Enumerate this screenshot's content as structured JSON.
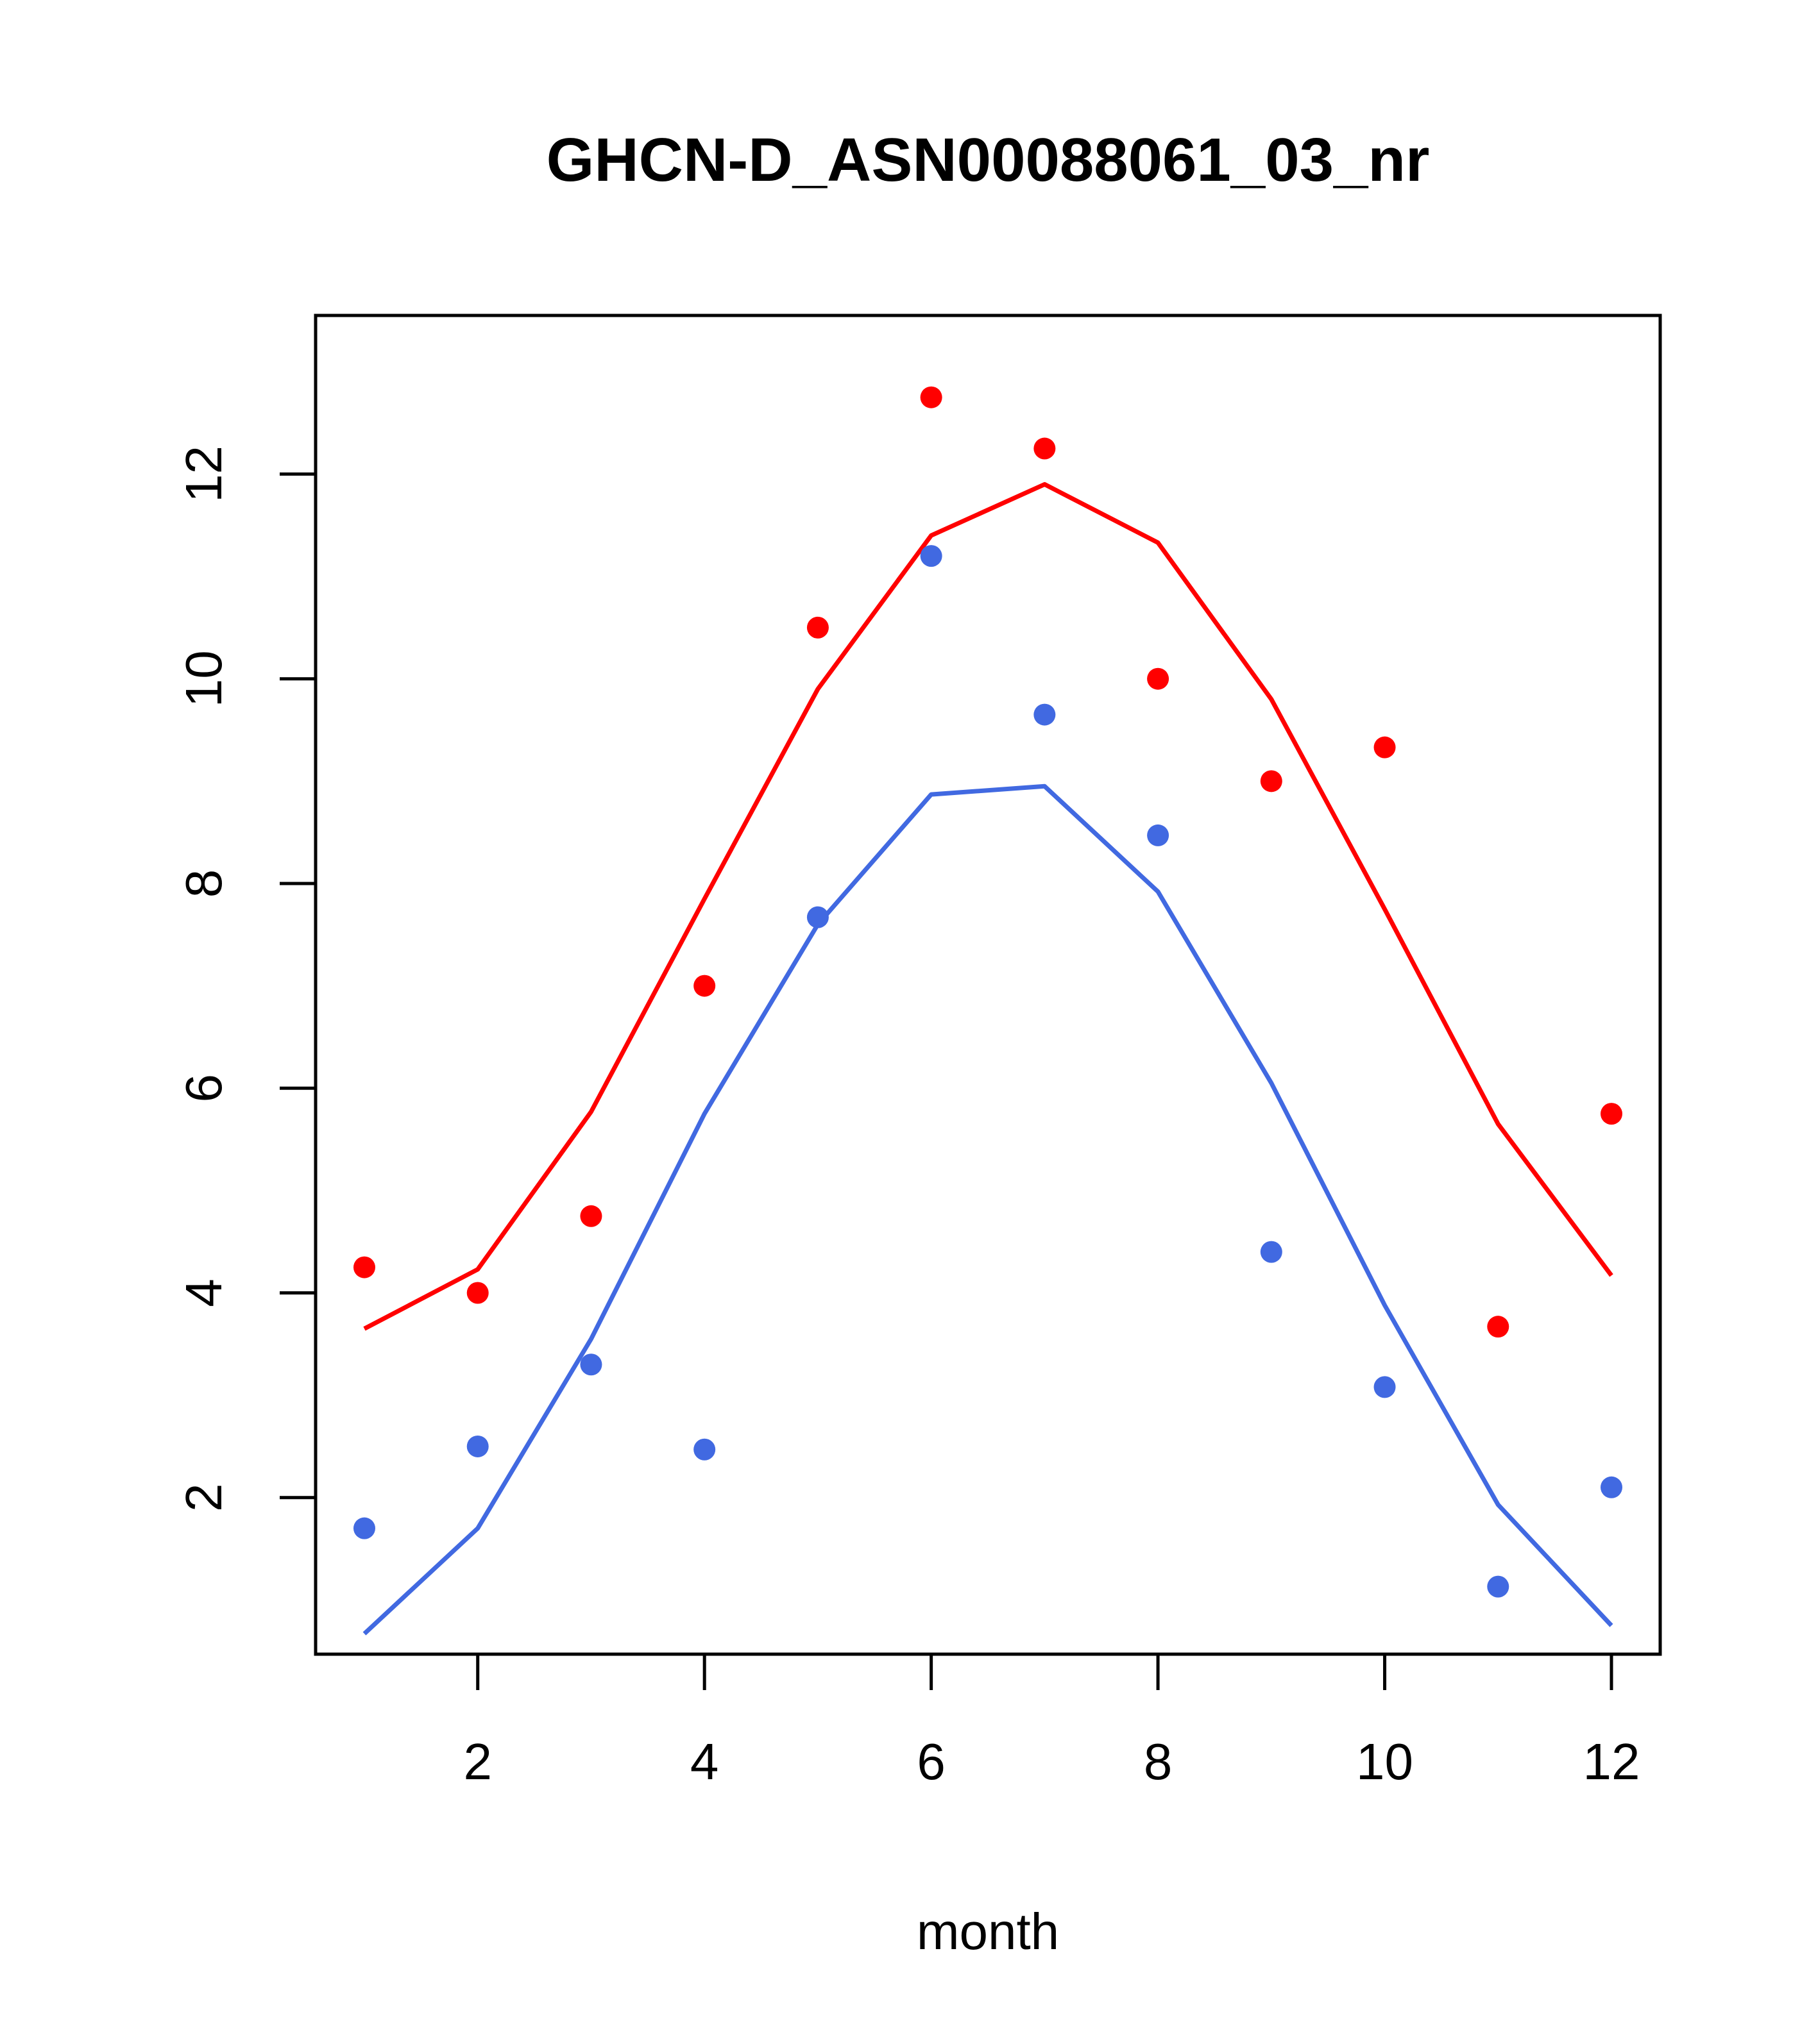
{
  "chart_data": {
    "type": "scatter",
    "title": "GHCN-D_ASN00088061_03_nr",
    "xlabel": "month",
    "ylabel": "",
    "xlim": [
      0.57,
      12.43
    ],
    "ylim": [
      0.47,
      13.55
    ],
    "x_ticks": [
      2,
      4,
      6,
      8,
      10,
      12
    ],
    "y_ticks": [
      2,
      4,
      6,
      8,
      10,
      12
    ],
    "grid": false,
    "legend": "none",
    "x": [
      1,
      2,
      3,
      4,
      5,
      6,
      7,
      8,
      9,
      10,
      11,
      12
    ],
    "series": [
      {
        "color": "#FF0000",
        "points": [
          4.25,
          4.0,
          4.75,
          7.0,
          10.5,
          12.75,
          12.25,
          10.0,
          9.0,
          9.33,
          3.67,
          5.75
        ],
        "line": [
          3.65,
          4.23,
          5.77,
          7.85,
          9.9,
          11.4,
          11.9,
          11.33,
          9.8,
          7.75,
          5.65,
          4.17
        ]
      },
      {
        "color": "#4169E1",
        "points": [
          1.7,
          2.5,
          3.3,
          2.47,
          7.67,
          11.2,
          9.65,
          8.47,
          4.4,
          3.08,
          1.13,
          2.1
        ],
        "line": [
          0.67,
          1.7,
          3.55,
          5.75,
          7.6,
          8.87,
          8.95,
          7.92,
          6.05,
          3.88,
          1.93,
          0.75
        ]
      }
    ]
  }
}
